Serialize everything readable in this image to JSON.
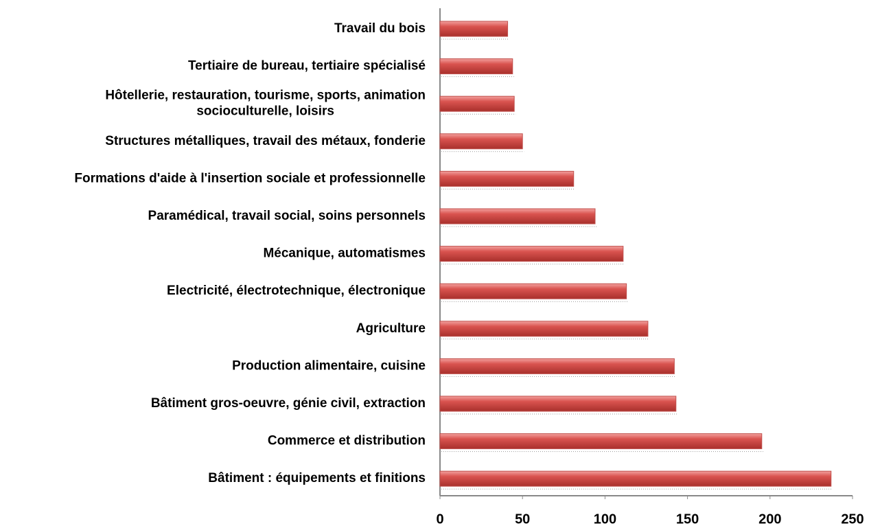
{
  "chart_data": {
    "type": "bar",
    "orientation": "horizontal",
    "categories": [
      "Travail du bois",
      "Tertiaire de bureau, tertiaire spécialisé",
      "Hôtellerie, restauration, tourisme, sports, animation\nsocioculturelle, loisirs",
      "Structures métalliques, travail des métaux, fonderie",
      "Formations d'aide à l'insertion sociale et professionnelle",
      "Paramédical, travail social, soins personnels",
      "Mécanique, automatismes",
      "Electricité, électrotechnique, électronique",
      "Agriculture",
      "Production alimentaire, cuisine",
      "Bâtiment gros-oeuvre, génie civil, extraction",
      "Commerce et distribution",
      "Bâtiment : équipements et finitions"
    ],
    "values": [
      41,
      44,
      45,
      50,
      81,
      94,
      111,
      113,
      126,
      142,
      143,
      195,
      237
    ],
    "color": "#c0504d",
    "xlim": [
      0,
      250
    ],
    "xticks": [
      0,
      50,
      100,
      150,
      200,
      250
    ],
    "grid": false
  }
}
